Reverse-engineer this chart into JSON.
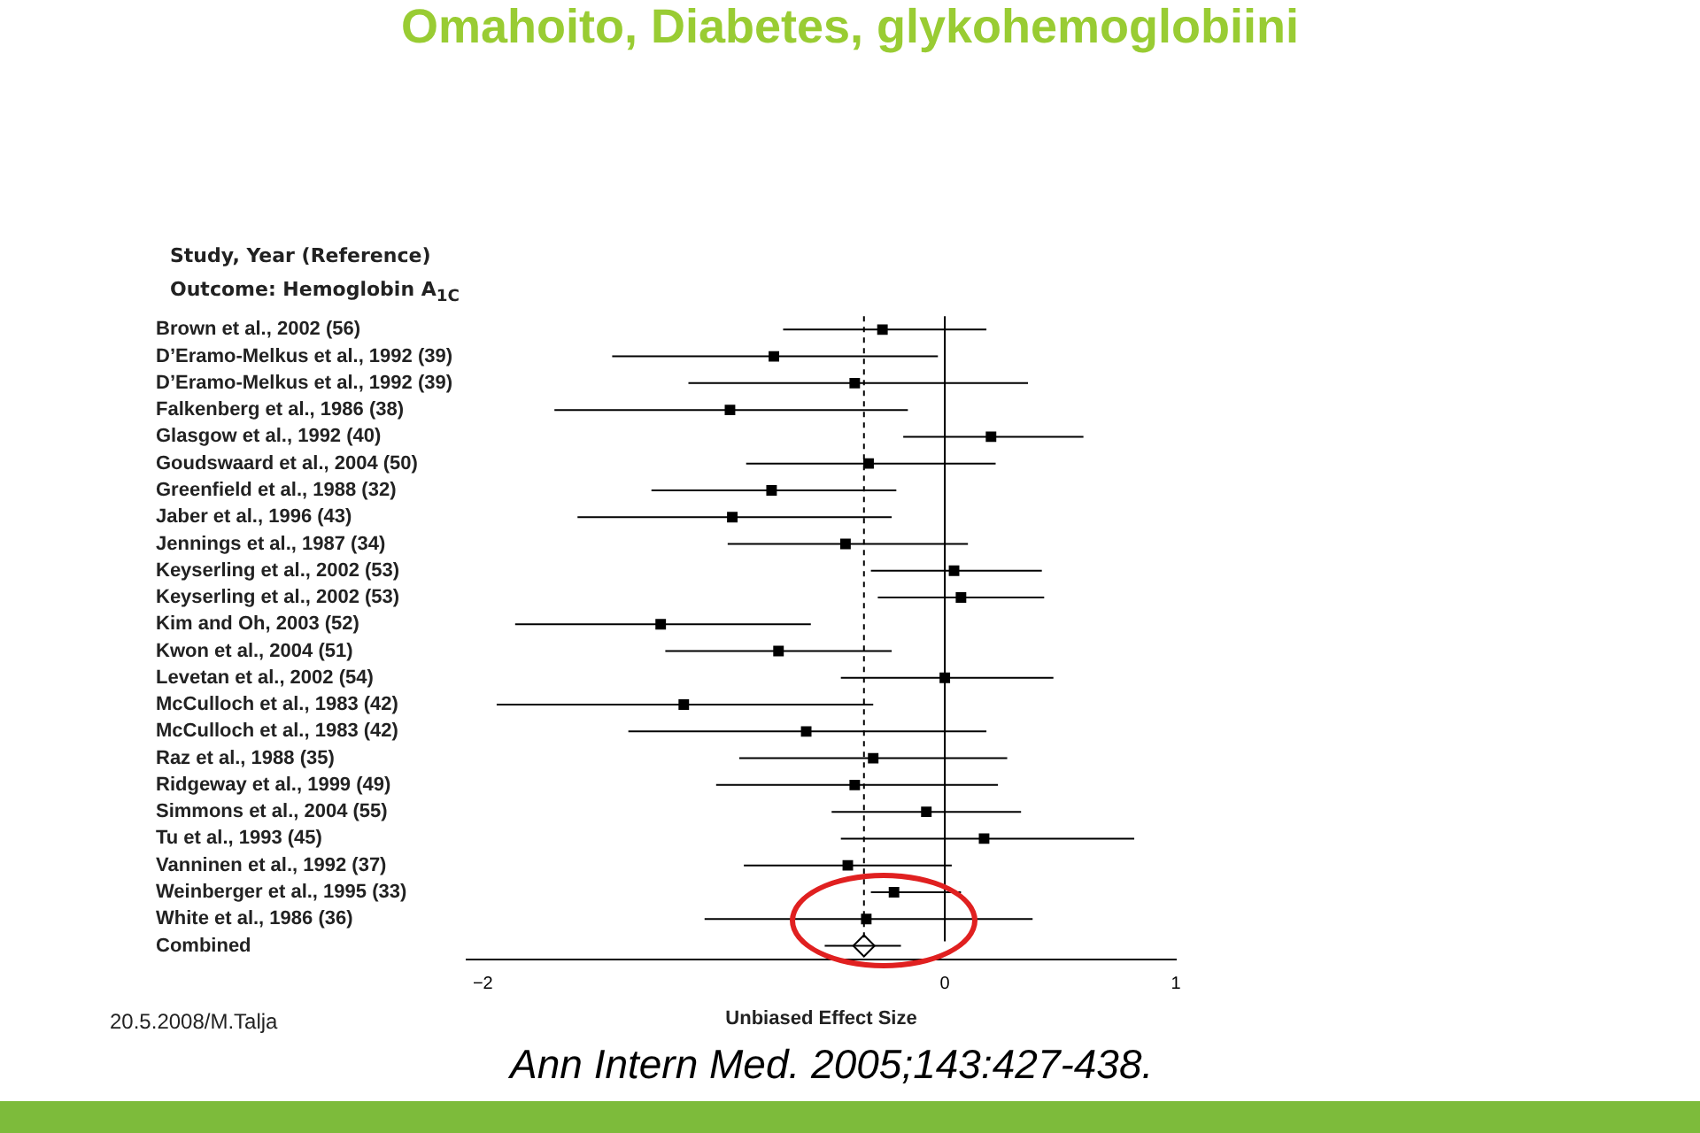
{
  "chart_data": {
    "type": "scatter",
    "orientation": "horizontal",
    "title": "Omahoito, Diabetes, glykohemoglobiini",
    "xlabel": "Unbiased Effect Size",
    "categories": [
      "Brown et al., 2002 (56)",
      "D’Eramo-Melkus et al., 1992 (39)",
      "D’Eramo-Melkus et al., 1992 (39)",
      "Falkenberg et al., 1986 (38)",
      "Glasgow et al., 1992 (40)",
      "Goudswaard et al., 2004 (50)",
      "Greenfield et al., 1988 (32)",
      "Jaber et al., 1996 (43)",
      "Jennings et al., 1987 (34)",
      "Keyserling et al., 2002 (53)",
      "Keyserling et al., 2002 (53)",
      "Kim and Oh, 2003 (52)",
      "Kwon et al., 2004 (51)",
      "Levetan et al., 2002 (54)",
      "McCulloch et al., 1983 (42)",
      "McCulloch et al., 1983 (42)",
      "Raz et al., 1988 (35)",
      "Ridgeway et al., 1999 (49)",
      "Simmons et al., 2004 (55)",
      "Tu et al., 1993 (45)",
      "Vanninen et al., 1992 (37)",
      "Weinberger et al., 1995 (33)",
      "White et al., 1986 (36)",
      "Combined"
    ],
    "series": [
      {
        "color": "#000000",
        "marker": "square",
        "values": [
          -0.27,
          -0.74,
          -0.39,
          -0.93,
          0.2,
          -0.33,
          -0.75,
          -0.92,
          -0.43,
          0.04,
          0.07,
          -1.23,
          -0.72,
          0.0,
          -1.13,
          -0.6,
          -0.31,
          -0.39,
          -0.08,
          0.17,
          -0.42,
          -0.22,
          -0.34,
          null
        ],
        "errors": [
          [
            -0.7,
            0.18
          ],
          [
            -1.44,
            -0.03
          ],
          [
            -1.11,
            0.36
          ],
          [
            -1.69,
            -0.16
          ],
          [
            -0.18,
            0.6
          ],
          [
            -0.86,
            0.22
          ],
          [
            -1.27,
            -0.21
          ],
          [
            -1.59,
            -0.23
          ],
          [
            -0.94,
            0.1
          ],
          [
            -0.32,
            0.42
          ],
          [
            -0.29,
            0.43
          ],
          [
            -1.86,
            -0.58
          ],
          [
            -1.21,
            -0.23
          ],
          [
            -0.45,
            0.47
          ],
          [
            -1.94,
            -0.31
          ],
          [
            -1.37,
            0.18
          ],
          [
            -0.89,
            0.27
          ],
          [
            -0.99,
            0.23
          ],
          [
            -0.49,
            0.33
          ],
          [
            -0.45,
            0.82
          ],
          [
            -0.87,
            0.03
          ],
          [
            -0.32,
            0.07
          ],
          [
            -1.04,
            0.38
          ],
          null
        ]
      },
      {
        "color": "#000000",
        "marker": "diamond",
        "values": [
          null,
          null,
          null,
          null,
          null,
          null,
          null,
          null,
          null,
          null,
          null,
          null,
          null,
          null,
          null,
          null,
          null,
          null,
          null,
          null,
          null,
          null,
          null,
          -0.35
        ],
        "errors": [
          null,
          null,
          null,
          null,
          null,
          null,
          null,
          null,
          null,
          null,
          null,
          null,
          null,
          null,
          null,
          null,
          null,
          null,
          null,
          null,
          null,
          null,
          null,
          [
            -0.52,
            -0.19
          ]
        ]
      }
    ],
    "xlim": [
      -2.07,
      1.0
    ],
    "xticks": [
      {
        "value": -2,
        "label": "−2"
      },
      0,
      1
    ],
    "ref_lines": [
      {
        "axis": "x",
        "value": -0.35,
        "line_style": "dashed",
        "color": "#000000"
      },
      {
        "axis": "x",
        "value": 0,
        "line_style": "solid",
        "color": "#000000"
      }
    ],
    "annotations": [
      "Study, Year (Reference)",
      "Outcome: Hemoglobin A$_{1C}$",
      "Ann Intern Med. 2005;143:427-438.",
      "20.5.2008/M.Talja"
    ],
    "grid": false,
    "legend": false
  }
}
